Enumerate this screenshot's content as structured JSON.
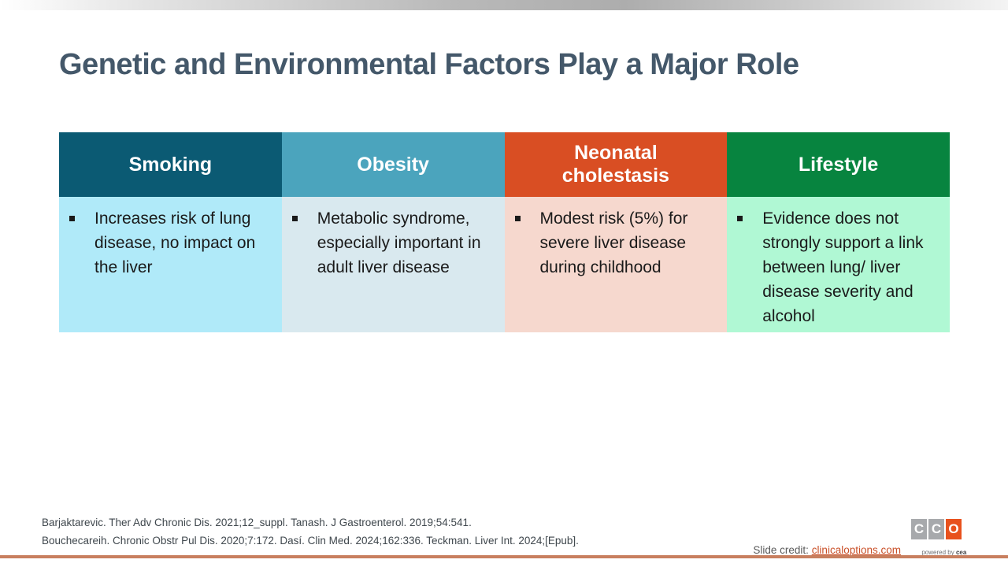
{
  "slide": {
    "title": "Genetic and Environmental Factors Play a Major Role"
  },
  "table": {
    "columns": [
      {
        "header": "Smoking",
        "header_color": "#0b5a73",
        "body_color": "#b0eaf9",
        "bullet": "Increases risk of lung disease, no impact on the liver"
      },
      {
        "header": "Obesity",
        "header_color": "#4ba4bd",
        "body_color": "#d9e9ef",
        "bullet": "Metabolic syndrome, especially important in adult liver disease"
      },
      {
        "header": "Neonatal cholestasis",
        "header_color": "#d94e23",
        "body_color": "#f6d8ce",
        "bullet": "Modest risk (5%) for severe liver disease during childhood"
      },
      {
        "header": "Lifestyle",
        "header_color": "#07843f",
        "body_color": "#b0f8d4",
        "bullet": "Evidence does not strongly support a link between lung/ liver disease severity and alcohol"
      }
    ]
  },
  "footer": {
    "citations": [
      "Barjaktarevic. Ther Adv Chronic Dis. 2021;12_suppl. Tanash. J Gastroenterol. 2019;54:541.",
      "Bouchecareih. Chronic Obstr Pul Dis. 2020;7:172. Dasí. Clin Med. 2024;162:336. Teckman. Liver Int. 2024;[Epub]."
    ],
    "slide_credit_label": "Slide credit: ",
    "slide_credit_link": "clinicaloptions.com",
    "logo": {
      "letters": [
        "C",
        "C",
        "O"
      ],
      "gray": "#a7a9ac",
      "orange": "#e8511d",
      "tagline_prefix": "powered by ",
      "tagline_brand": "cea"
    }
  },
  "accent": {
    "top_bar": "gray-gradient",
    "bottom_bar_color": "#c87f5f"
  }
}
